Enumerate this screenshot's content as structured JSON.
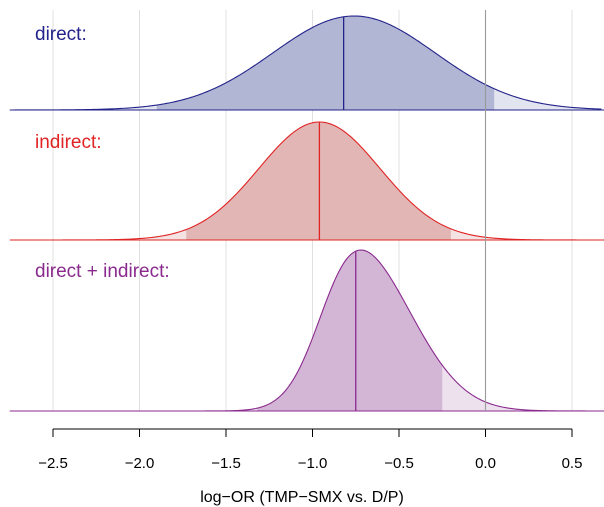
{
  "chart_data": {
    "type": "area",
    "xlabel": "log−OR (TMP−SMX vs. D/P)",
    "xlim": [
      -2.75,
      0.67
    ],
    "x_ticks": [
      -2.5,
      -2.0,
      -1.5,
      -1.0,
      -0.5,
      0.0,
      0.5
    ],
    "x_tick_labels": [
      "−2.5",
      "−2.0",
      "−1.5",
      "−1.0",
      "−0.5",
      "0.0",
      "0.5"
    ],
    "vertical_gridlines": [
      -2.5,
      -2.0,
      -1.5,
      -1.0,
      -0.5,
      0.5
    ],
    "reference_line": 0.0,
    "panels": [
      {
        "label": "direct:",
        "color": "#23238b",
        "fill": "#b0b6d3",
        "fill_tail": "#e2e4ef",
        "mode": -0.76,
        "sd": 0.47,
        "skew": 0.0,
        "median": -0.82,
        "interval": [
          -1.9,
          0.05
        ]
      },
      {
        "label": "indirect:",
        "color": "#e02424",
        "fill": "#e3b6b6",
        "fill_tail": "#f4e3e3",
        "mode": -0.96,
        "sd": 0.35,
        "skew": 0.0,
        "median": -0.96,
        "interval": [
          -1.73,
          -0.2
        ]
      },
      {
        "label": "direct + indirect:",
        "color": "#8a2a8e",
        "fill": "#d3b6d5",
        "fill_tail": "#ede1ee",
        "mode": -0.72,
        "sd": 0.255,
        "skew": 0.18,
        "median": -0.75,
        "interval": [
          -1.32,
          -0.25
        ]
      }
    ]
  }
}
